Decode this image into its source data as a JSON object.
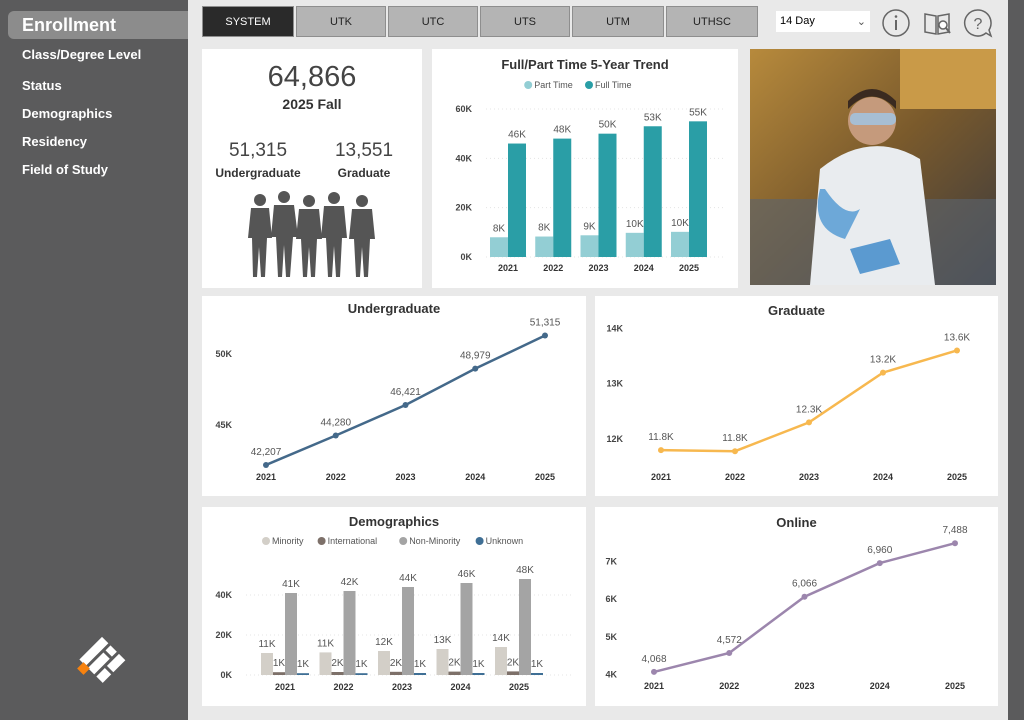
{
  "sidebar": {
    "active": "Enrollment",
    "items": [
      "Class/Degree Level",
      "Status",
      "Demographics",
      "Residency",
      "Field of Study"
    ]
  },
  "tabs": [
    "SYSTEM",
    "UTK",
    "UTC",
    "UTS",
    "UTM",
    "UTHSC"
  ],
  "active_tab": "SYSTEM",
  "period_select": {
    "value": "14 Day"
  },
  "toolbar_icons": [
    "info-icon",
    "guide-book-icon",
    "help-icon"
  ],
  "kpi": {
    "total": "64,866",
    "term": "2025 Fall",
    "undergrad_value": "51,315",
    "undergrad_label": "Undergraduate",
    "grad_value": "13,551",
    "grad_label": "Graduate"
  },
  "colors": {
    "part_time": "#93ced4",
    "full_time": "#2a9ea6",
    "undergrad_line": "#44698a",
    "grad_line": "#f7b84f",
    "online_line": "#9c86ad",
    "minority": "#d3cfc8",
    "international": "#7d7069",
    "non_minority": "#a4a4a4",
    "unknown": "#3f6f95"
  },
  "chart_data": [
    {
      "id": "ft",
      "type": "bar",
      "title": "Full/Part Time 5-Year Trend",
      "legend": "top-center",
      "grid": true,
      "categories": [
        "2021",
        "2022",
        "2023",
        "2024",
        "2025"
      ],
      "ylim": [
        0,
        60000
      ],
      "yticks": [
        "0K",
        "20K",
        "40K",
        "60K"
      ],
      "ytick_values": [
        0,
        20000,
        40000,
        60000
      ],
      "series": [
        {
          "name": "Part Time",
          "values": [
            8000,
            8300,
            8800,
            9800,
            10200
          ],
          "labels": [
            "8K",
            "8K",
            "9K",
            "10K",
            "10K"
          ]
        },
        {
          "name": "Full Time",
          "values": [
            46000,
            48000,
            50000,
            53000,
            55000
          ],
          "labels": [
            "46K",
            "48K",
            "50K",
            "53K",
            "55K"
          ]
        }
      ]
    },
    {
      "id": "ug",
      "type": "line",
      "title": "Undergraduate",
      "grid": false,
      "categories": [
        "2021",
        "2022",
        "2023",
        "2024",
        "2025"
      ],
      "ylim": [
        41500,
        51700
      ],
      "yticks": [
        "45K",
        "50K"
      ],
      "ytick_values": [
        45000,
        50000
      ],
      "series": [
        {
          "values": [
            42207,
            44280,
            46421,
            48979,
            51315
          ],
          "labels": [
            "42,207",
            "44,280",
            "46,421",
            "48,979",
            "51,315"
          ]
        }
      ]
    },
    {
      "id": "gr",
      "type": "line",
      "title": "Graduate",
      "grid": false,
      "categories": [
        "2021",
        "2022",
        "2023",
        "2024",
        "2025"
      ],
      "ylim": [
        11350,
        14150
      ],
      "yticks": [
        "12K",
        "13K",
        "14K"
      ],
      "ytick_values": [
        12000,
        13000,
        14000
      ],
      "series": [
        {
          "values": [
            11800,
            11780,
            12300,
            13200,
            13600
          ],
          "labels": [
            "11.8K",
            "11.8K",
            "12.3K",
            "13.2K",
            "13.6K"
          ]
        }
      ]
    },
    {
      "id": "dm",
      "type": "bar",
      "title": "Demographics",
      "legend": "top-center",
      "grid": true,
      "categories": [
        "2021",
        "2022",
        "2023",
        "2024",
        "2025"
      ],
      "ylim": [
        0,
        60000
      ],
      "yticks": [
        "0K",
        "20K",
        "40K"
      ],
      "ytick_values": [
        0,
        20000,
        40000
      ],
      "series": [
        {
          "name": "Minority",
          "values": [
            11000,
            11300,
            12000,
            13000,
            14000
          ],
          "labels": [
            "11K",
            "11K",
            "12K",
            "13K",
            "14K"
          ]
        },
        {
          "name": "International",
          "values": [
            1400,
            1500,
            1600,
            1700,
            1800
          ],
          "labels": [
            "1K",
            "2K",
            "2K",
            "2K",
            "2K"
          ]
        },
        {
          "name": "Non-Minority",
          "values": [
            41000,
            42000,
            44000,
            46000,
            48000
          ],
          "labels": [
            "41K",
            "42K",
            "44K",
            "46K",
            "48K"
          ]
        },
        {
          "name": "Unknown",
          "values": [
            900,
            900,
            1000,
            1000,
            1000
          ],
          "labels": [
            "1K",
            "1K",
            "1K",
            "1K",
            "1K"
          ]
        }
      ]
    },
    {
      "id": "on",
      "type": "line",
      "title": "Online",
      "grid": false,
      "categories": [
        "2021",
        "2022",
        "2023",
        "2024",
        "2025"
      ],
      "ylim": [
        3800,
        7600
      ],
      "yticks": [
        "4K",
        "5K",
        "6K",
        "7K"
      ],
      "ytick_values": [
        4000,
        5000,
        6000,
        7000
      ],
      "series": [
        {
          "values": [
            4068,
            4572,
            6066,
            6960,
            7488
          ],
          "labels": [
            "4,068",
            "4,572",
            "6,066",
            "6,960",
            "7,488"
          ]
        }
      ]
    }
  ]
}
